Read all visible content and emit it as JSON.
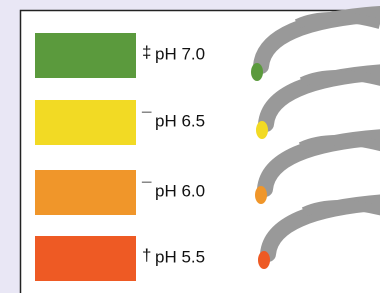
{
  "rows": [
    {
      "symbol": "‡",
      "label": "pH 7.0",
      "color": "#5b9a3d"
    },
    {
      "symbol": "¯",
      "label": "pH 6.5",
      "color": "#f2da24"
    },
    {
      "symbol": "¯",
      "label": "pH 6.0",
      "color": "#f0962a"
    },
    {
      "symbol": "†",
      "label": "pH 5.5",
      "color": "#ee5a24"
    }
  ]
}
